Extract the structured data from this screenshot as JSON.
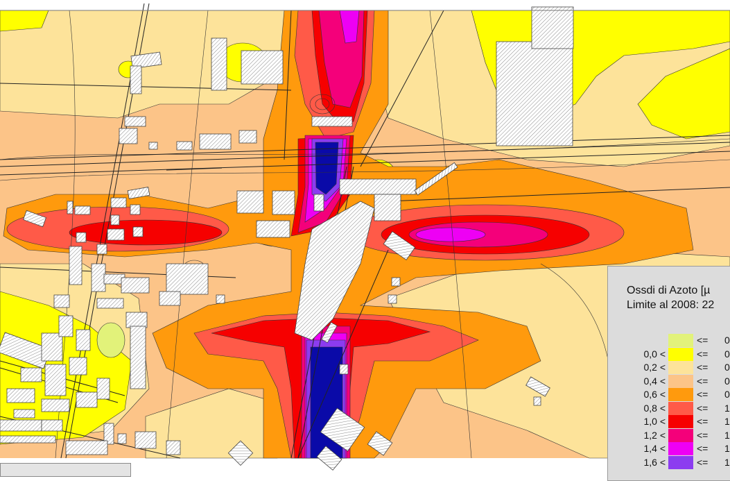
{
  "legend": {
    "title_line1": "Ossdi di Azoto [µ",
    "title_line2": "Limite al 2008: 22",
    "classes": [
      {
        "lo": "",
        "op": "<=",
        "hi": "0",
        "color": "#e2f27a"
      },
      {
        "lo": "0,0 <",
        "op": "<=",
        "hi": "0",
        "color": "#ffff00"
      },
      {
        "lo": "0,2 <",
        "op": "<=",
        "hi": "0",
        "color": "#fde39a"
      },
      {
        "lo": "0,4 <",
        "op": "<=",
        "hi": "0",
        "color": "#fcc488"
      },
      {
        "lo": "0,6 <",
        "op": "<=",
        "hi": "0",
        "color": "#ff9a0d"
      },
      {
        "lo": "0,8 <",
        "op": "<=",
        "hi": "1",
        "color": "#ff5a48"
      },
      {
        "lo": "1,0 <",
        "op": "<=",
        "hi": "1",
        "color": "#f60000"
      },
      {
        "lo": "1,2 <",
        "op": "<=",
        "hi": "1",
        "color": "#f4007a"
      },
      {
        "lo": "1,4 <",
        "op": "<=",
        "hi": "1",
        "color": "#ee00f4"
      },
      {
        "lo": "1,6 <",
        "op": "<=",
        "hi": "1",
        "color": "#8c3cf0"
      }
    ]
  },
  "map": {
    "base_color": "#fcc488",
    "peak_color": "#0a0aa8",
    "building_fill": "#ffffff",
    "building_hatch": "#707070"
  }
}
